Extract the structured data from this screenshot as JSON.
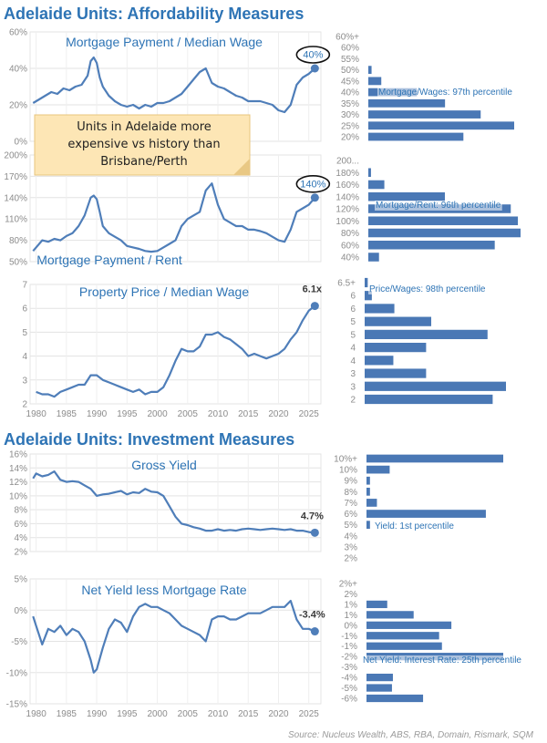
{
  "header": {
    "affordability_title": "Adelaide Units: Affordability Measures",
    "investment_title": "Adelaide Units: Investment Measures"
  },
  "note": {
    "lines": [
      "Units in Adelaide more",
      "expensive vs history than",
      "Brisbane/Perth"
    ]
  },
  "source": "Source: Nucleus Wealth, ABS, RBA, Domain, Rismark, SQM",
  "colors": {
    "line": "#4f7eb9",
    "bar": "#4a78b5",
    "title": "#2e74b5",
    "note_bg": "#fde6b5",
    "grid": "#e3e3e3"
  },
  "chart_data": [
    {
      "type": "line",
      "title": "Mortgage Payment / Median Wage",
      "ylim": [
        0,
        60
      ],
      "yticks": [
        "0%",
        "20%",
        "40%",
        "60%"
      ],
      "ytick_values": [
        0,
        20,
        40,
        60
      ],
      "xlim": [
        1979,
        2027
      ],
      "callout": "40%",
      "callout_style": "oval",
      "x": [
        1979.5,
        1980.5,
        1981.5,
        1982.5,
        1983.5,
        1984.5,
        1985.5,
        1986.5,
        1987.5,
        1988.5,
        1989,
        1989.5,
        1990,
        1990.5,
        1991,
        1992,
        1993,
        1994,
        1995,
        1996,
        1997,
        1998,
        1999,
        2000,
        2001,
        2002,
        2003,
        2004,
        2005,
        2006,
        2007,
        2008,
        2009,
        2010,
        2011,
        2012,
        2013,
        2014,
        2015,
        2016,
        2017,
        2018,
        2019,
        2020,
        2021,
        2022,
        2023,
        2024,
        2025,
        2026
      ],
      "y": [
        21,
        23,
        25,
        27,
        26,
        29,
        28,
        30,
        31,
        36,
        44,
        46,
        43,
        35,
        30,
        25,
        22,
        20,
        19,
        20,
        18,
        20,
        19,
        21,
        21,
        22,
        24,
        26,
        30,
        34,
        38,
        40,
        32,
        30,
        29,
        27,
        25,
        24,
        22,
        22,
        22,
        21,
        20,
        17,
        16,
        20,
        31,
        35,
        37,
        40
      ]
    },
    {
      "type": "bar",
      "orientation": "horizontal",
      "categories": [
        "20%",
        "25%",
        "30%",
        "35%",
        "40%",
        "45%",
        "50%",
        "55%",
        "60%",
        "60%+"
      ],
      "values": [
        88,
        135,
        104,
        71,
        45,
        12,
        3,
        0,
        0,
        0
      ],
      "marker_category": "45%",
      "annotation": "Mortgage/Wages: 97th percentile"
    },
    {
      "type": "line",
      "title": "Mortgage Payment / Rent",
      "ylim": [
        50,
        200
      ],
      "yticks": [
        "50%",
        "80%",
        "110%",
        "140%",
        "170%",
        "200%"
      ],
      "ytick_values": [
        50,
        80,
        110,
        140,
        170,
        200
      ],
      "xlim": [
        1979,
        2027
      ],
      "callout": "140%",
      "callout_style": "oval",
      "x": [
        1979.5,
        1980,
        1981,
        1982,
        1983,
        1984,
        1985,
        1986,
        1987,
        1988,
        1989,
        1989.5,
        1990,
        1990.5,
        1991,
        1992,
        1993,
        1994,
        1995,
        1996,
        1997,
        1998,
        1999,
        2000,
        2001,
        2002,
        2003,
        2004,
        2005,
        2006,
        2007,
        2008,
        2009,
        2010,
        2011,
        2012,
        2013,
        2014,
        2015,
        2016,
        2017,
        2018,
        2019,
        2020,
        2021,
        2022,
        2023,
        2024,
        2025,
        2026
      ],
      "y": [
        65,
        70,
        80,
        78,
        82,
        80,
        86,
        90,
        100,
        115,
        140,
        143,
        138,
        120,
        100,
        90,
        85,
        80,
        72,
        70,
        68,
        65,
        64,
        65,
        70,
        75,
        80,
        100,
        110,
        115,
        120,
        150,
        160,
        130,
        110,
        105,
        100,
        100,
        95,
        95,
        93,
        90,
        85,
        80,
        78,
        95,
        120,
        125,
        130,
        140
      ]
    },
    {
      "type": "bar",
      "orientation": "horizontal",
      "categories": [
        "40%",
        "60%",
        "80%",
        "100%",
        "120%",
        "140%",
        "160%",
        "180%",
        "200..."
      ],
      "values": [
        12,
        142,
        171,
        168,
        160,
        86,
        18,
        3,
        0
      ],
      "marker_category": "140%",
      "annotation": "Mortgage/Rent: 96th percentile"
    },
    {
      "type": "line",
      "title": "Property Price / Median Wage",
      "ylim": [
        2,
        7
      ],
      "yticks": [
        "2",
        "3",
        "4",
        "5",
        "6",
        "7"
      ],
      "ytick_values": [
        2,
        3,
        4,
        5,
        6,
        7
      ],
      "xlim": [
        1979,
        2027
      ],
      "callout": "6.1x",
      "callout_style": "text",
      "x": [
        1980,
        1981,
        1982,
        1983,
        1984,
        1985,
        1986,
        1987,
        1988,
        1989,
        1990,
        1991,
        1992,
        1993,
        1994,
        1995,
        1996,
        1997,
        1998,
        1999,
        2000,
        2001,
        2002,
        2003,
        2004,
        2005,
        2006,
        2007,
        2008,
        2009,
        2010,
        2011,
        2012,
        2013,
        2014,
        2015,
        2016,
        2017,
        2018,
        2019,
        2020,
        2021,
        2022,
        2023,
        2024,
        2025,
        2026
      ],
      "y": [
        2.5,
        2.4,
        2.4,
        2.3,
        2.5,
        2.6,
        2.7,
        2.8,
        2.8,
        3.2,
        3.2,
        3.0,
        2.9,
        2.8,
        2.7,
        2.6,
        2.5,
        2.6,
        2.4,
        2.5,
        2.5,
        2.7,
        3.2,
        3.8,
        4.3,
        4.2,
        4.2,
        4.4,
        4.9,
        4.9,
        5.0,
        4.8,
        4.7,
        4.5,
        4.3,
        4.0,
        4.1,
        4.0,
        3.9,
        4.0,
        4.1,
        4.3,
        4.7,
        5.0,
        5.5,
        5.9,
        6.1
      ]
    },
    {
      "type": "bar",
      "orientation": "horizontal",
      "categories": [
        "2",
        "3",
        "3",
        "4",
        "4",
        "5",
        "5",
        "6",
        "6",
        "6.5+"
      ],
      "values": [
        125,
        138,
        60,
        28,
        60,
        120,
        65,
        29,
        7,
        3
      ],
      "annotation": "Price/Wages: 98th percentile"
    },
    {
      "type": "line",
      "title": "Gross Yield",
      "ylim": [
        2,
        16
      ],
      "yticks": [
        "2%",
        "4%",
        "6%",
        "8%",
        "10%",
        "12%",
        "14%",
        "16%"
      ],
      "ytick_values": [
        2,
        4,
        6,
        8,
        10,
        12,
        14,
        16
      ],
      "xlim": [
        1979,
        2027
      ],
      "callout": "4.7%",
      "callout_style": "text",
      "x": [
        1979.5,
        1980,
        1981,
        1982,
        1983,
        1984,
        1985,
        1986,
        1987,
        1988,
        1989,
        1990,
        1991,
        1992,
        1993,
        1994,
        1995,
        1996,
        1997,
        1998,
        1999,
        2000,
        2001,
        2002,
        2003,
        2004,
        2005,
        2006,
        2007,
        2008,
        2009,
        2010,
        2011,
        2012,
        2013,
        2014,
        2015,
        2016,
        2017,
        2018,
        2019,
        2020,
        2021,
        2022,
        2023,
        2024,
        2025,
        2026
      ],
      "y": [
        12.5,
        13.2,
        12.8,
        13.0,
        13.5,
        12.3,
        12.0,
        12.1,
        12.0,
        11.5,
        11.0,
        10.0,
        10.2,
        10.3,
        10.5,
        10.7,
        10.2,
        10.5,
        10.4,
        11.0,
        10.6,
        10.5,
        10.0,
        8.5,
        7.0,
        6.0,
        5.8,
        5.5,
        5.3,
        5.0,
        5.0,
        5.2,
        5.0,
        5.1,
        5.0,
        5.2,
        5.3,
        5.2,
        5.1,
        5.2,
        5.3,
        5.2,
        5.1,
        5.2,
        5.0,
        5.0,
        4.8,
        4.7
      ]
    },
    {
      "type": "bar",
      "orientation": "horizontal",
      "categories": [
        "2%",
        "3%",
        "4%",
        "5%",
        "6%",
        "7%",
        "8%",
        "9%",
        "10%",
        "10%+"
      ],
      "values": [
        0,
        0,
        0,
        3,
        103,
        9,
        3,
        3,
        20,
        118
      ],
      "marker_category": "5%",
      "annotation": "Yield: 1st percentile"
    },
    {
      "type": "line",
      "title": "Net Yield less Mortgage Rate",
      "ylim": [
        -15,
        5
      ],
      "yticks": [
        "-15%",
        "-10%",
        "-5%",
        "0%",
        "5%"
      ],
      "ytick_values": [
        -15,
        -10,
        -5,
        0,
        5
      ],
      "xlim": [
        1979,
        2027
      ],
      "callout": "-3.4%",
      "callout_style": "text",
      "x": [
        1979.5,
        1980,
        1981,
        1982,
        1983,
        1984,
        1985,
        1986,
        1987,
        1988,
        1989,
        1989.5,
        1990,
        1991,
        1992,
        1993,
        1994,
        1995,
        1996,
        1997,
        1998,
        1999,
        2000,
        2001,
        2002,
        2003,
        2004,
        2005,
        2006,
        2007,
        2008,
        2009,
        2010,
        2011,
        2012,
        2013,
        2014,
        2015,
        2016,
        2017,
        2018,
        2019,
        2020,
        2021,
        2022,
        2023,
        2024,
        2025,
        2026
      ],
      "y": [
        -1.0,
        -2.5,
        -5.5,
        -3.0,
        -3.5,
        -2.5,
        -4.0,
        -3.0,
        -3.5,
        -5.0,
        -8.0,
        -10.0,
        -9.5,
        -6.0,
        -3.0,
        -1.5,
        -2.0,
        -3.5,
        -1.0,
        0.5,
        1.0,
        0.5,
        0.5,
        0.0,
        -0.5,
        -1.5,
        -2.5,
        -3.0,
        -3.5,
        -4.0,
        -5.0,
        -1.5,
        -1.0,
        -1.0,
        -1.5,
        -1.5,
        -1.0,
        -0.5,
        -0.5,
        -0.5,
        0.0,
        0.5,
        0.5,
        0.5,
        1.5,
        -1.5,
        -3.0,
        -3.0,
        -3.4
      ]
    },
    {
      "type": "bar",
      "orientation": "horizontal",
      "categories": [
        "-6%",
        "-5%",
        "-4%",
        "-3%",
        "-2%",
        "-1%",
        "-1%",
        "0%",
        "1%",
        "1%",
        "2%",
        "2%+"
      ],
      "values": [
        60,
        27,
        28,
        0,
        145,
        80,
        77,
        90,
        50,
        22,
        0,
        0
      ],
      "marker_category": "-3%",
      "annotation": "Net Yield: Interest Rate: 25th percentile"
    }
  ],
  "x_axis_ticks": [
    "1980",
    "1985",
    "1990",
    "1995",
    "2000",
    "2005",
    "2010",
    "2015",
    "2020",
    "2025"
  ],
  "x_axis_tick_values": [
    1980,
    1985,
    1990,
    1995,
    2000,
    2005,
    2010,
    2015,
    2020,
    2025
  ]
}
